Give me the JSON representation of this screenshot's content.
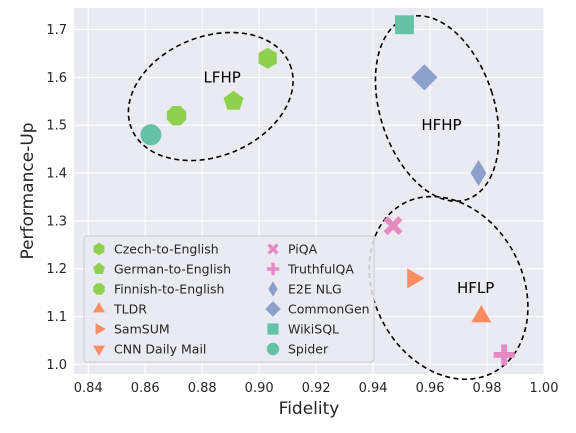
{
  "chart_data": {
    "type": "scatter",
    "title": "",
    "xlabel": "Fidelity",
    "ylabel": "Performance-Up",
    "xlim": [
      0.835,
      1.0
    ],
    "ylim": [
      0.98,
      1.745
    ],
    "xticks": [
      "0.84",
      "0.86",
      "0.88",
      "0.90",
      "0.92",
      "0.94",
      "0.96",
      "0.98",
      "1.00"
    ],
    "yticks": [
      "1.0",
      "1.1",
      "1.2",
      "1.3",
      "1.4",
      "1.5",
      "1.6",
      "1.7"
    ],
    "grid": true,
    "legend_position": "lower-left",
    "series": [
      {
        "name": "Czech-to-English",
        "marker": "hexagon",
        "color": "#8fd14f",
        "x": 0.903,
        "y": 1.64
      },
      {
        "name": "German-to-English",
        "marker": "pentagon",
        "color": "#8fd14f",
        "x": 0.891,
        "y": 1.55
      },
      {
        "name": "Finnish-to-English",
        "marker": "octagon",
        "color": "#8fd14f",
        "x": 0.871,
        "y": 1.52
      },
      {
        "name": "TLDR",
        "marker": "triangle-up",
        "color": "#fc8d62",
        "x": 0.978,
        "y": 1.1
      },
      {
        "name": "SamSUM",
        "marker": "triangle-right",
        "color": "#fc8d62",
        "x": 0.954,
        "y": 1.18
      },
      {
        "name": "CNN Daily Mail",
        "marker": "triangle-down",
        "color": "#fc8d62",
        "x": null,
        "y": null
      },
      {
        "name": "PiQA",
        "marker": "x",
        "color": "#e78ac3",
        "x": 0.947,
        "y": 1.29
      },
      {
        "name": "TruthfulQA",
        "marker": "plus",
        "color": "#e78ac3",
        "x": 0.986,
        "y": 1.02
      },
      {
        "name": "E2E NLG",
        "marker": "thin-diamond",
        "color": "#8da0cb",
        "x": 0.977,
        "y": 1.4
      },
      {
        "name": "CommonGen",
        "marker": "diamond",
        "color": "#8da0cb",
        "x": 0.958,
        "y": 1.6
      },
      {
        "name": "WikiSQL",
        "marker": "square",
        "color": "#66c2a5",
        "x": 0.951,
        "y": 1.71
      },
      {
        "name": "Spider",
        "marker": "circle",
        "color": "#66c2a5",
        "x": 0.862,
        "y": 1.48
      }
    ],
    "annotations": [
      {
        "text": "LFHP",
        "x": 0.887,
        "y": 1.6
      },
      {
        "text": "HFHP",
        "x": 0.964,
        "y": 1.5
      },
      {
        "text": "HFLP",
        "x": 0.976,
        "y": 1.16
      }
    ],
    "clusters": [
      {
        "name": "LFHP",
        "cx": 0.883,
        "cy": 1.56,
        "rx_data": 0.03,
        "ry_data": 0.125,
        "rotate": -22
      },
      {
        "name": "HFHP",
        "cx": 0.9625,
        "cy": 1.535,
        "rx_data": 0.02,
        "ry_data": 0.2,
        "rotate": -18
      },
      {
        "name": "HFLP",
        "cx": 0.9665,
        "cy": 1.16,
        "rx_data": 0.026,
        "ry_data": 0.2,
        "rotate": -28
      }
    ]
  }
}
